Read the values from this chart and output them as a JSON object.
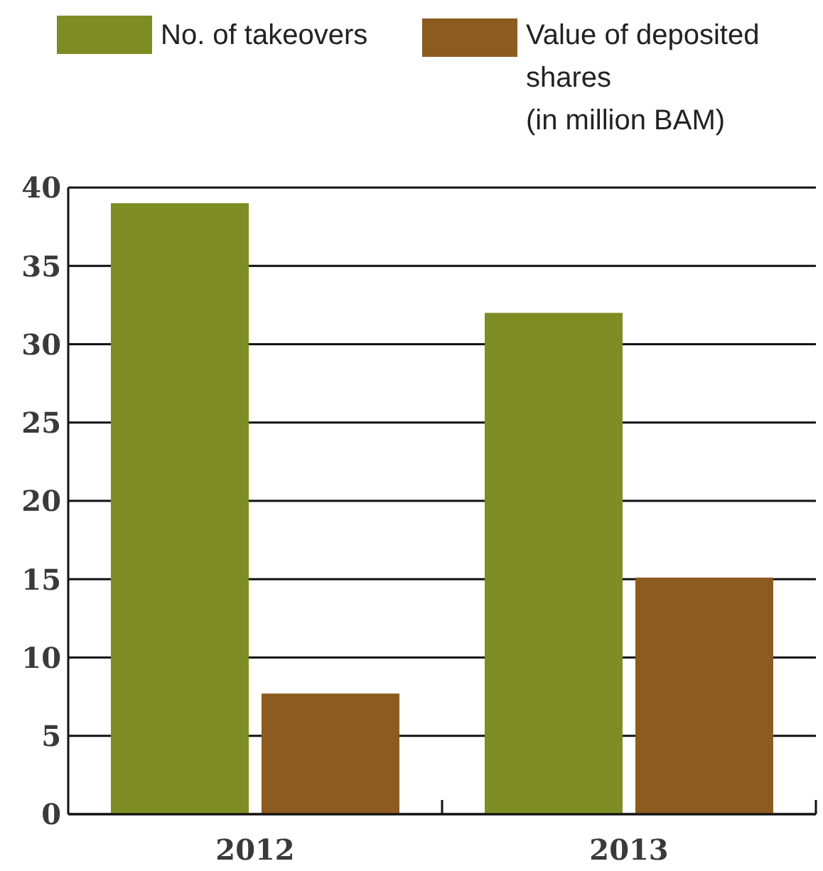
{
  "chart_data": {
    "type": "bar",
    "categories": [
      "2012",
      "2013"
    ],
    "series": [
      {
        "name": "No. of takeovers",
        "color": "#7d8d23",
        "values": [
          39,
          32
        ]
      },
      {
        "name": "Value of deposited shares\n(in million BAM)",
        "color": "#8c5b1f",
        "values": [
          7.7,
          15.1
        ]
      }
    ],
    "ylim": [
      0,
      40
    ],
    "yticks": [
      0,
      5,
      10,
      15,
      20,
      25,
      30,
      35,
      40
    ],
    "grid": "y",
    "legend": "top left"
  }
}
